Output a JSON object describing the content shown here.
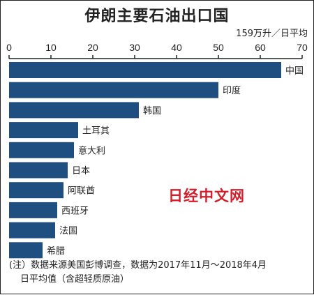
{
  "chart_data": {
    "type": "bar",
    "orientation": "horizontal",
    "title": "伊朗主要石油出口国",
    "unit_label": "159万升／日平均",
    "categories": [
      "中国",
      "印度",
      "韩国",
      "土耳其",
      "意大利",
      "日本",
      "阿联酋",
      "西班牙",
      "法国",
      "希腊"
    ],
    "values": [
      65,
      50,
      31,
      16.5,
      15.5,
      14,
      13,
      11.5,
      11,
      8
    ],
    "xlim": [
      0,
      70
    ],
    "xticks": [
      "0",
      "10",
      "20",
      "30",
      "40",
      "50",
      "60",
      "70"
    ],
    "bar_color": "#1f4e80",
    "grid": false,
    "note_line1": "(注）数据来源美国彭博调查，数据为2017年11月～2018年4月",
    "note_line2": "日平均值（含超轻质原油）"
  },
  "watermark": "日经中文网"
}
